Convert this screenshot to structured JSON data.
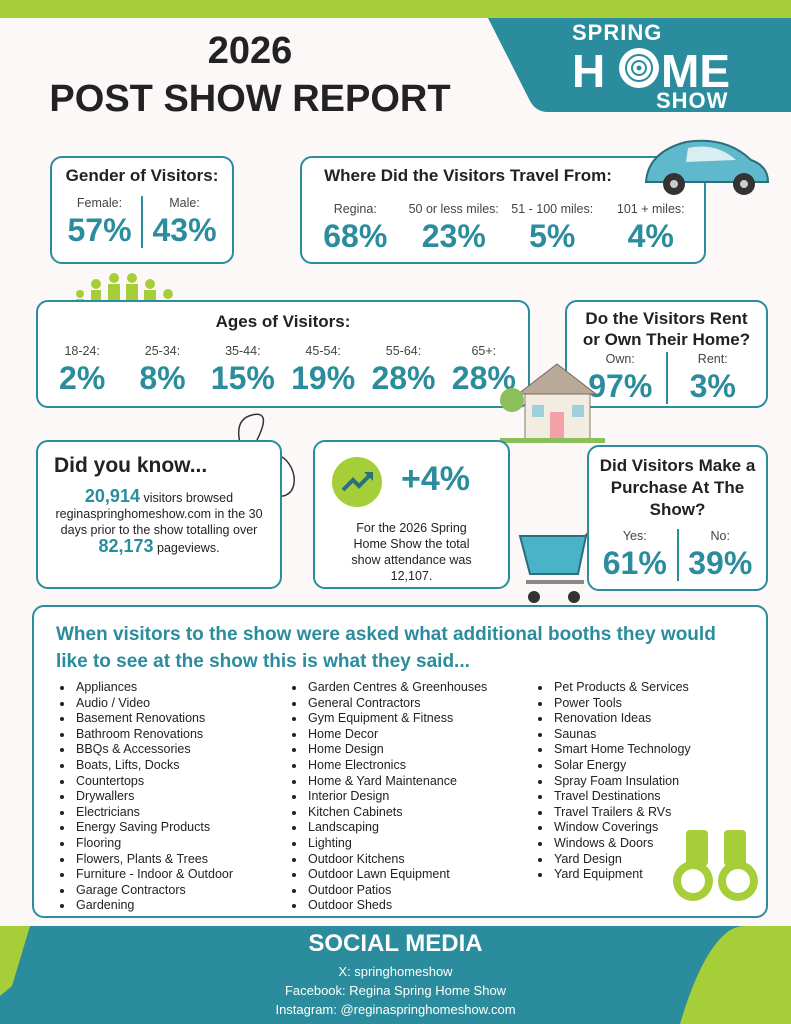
{
  "header": {
    "year": "2026",
    "title": "POST SHOW REPORT",
    "logo": {
      "top": "SPRING",
      "left": "H",
      "right": "ME",
      "bottom": "SHOW"
    }
  },
  "gender": {
    "title": "Gender of Visitors:",
    "items": [
      {
        "label": "Female:",
        "value": "57%"
      },
      {
        "label": "Male:",
        "value": "43%"
      }
    ]
  },
  "travel": {
    "title": "Where Did the Visitors Travel From:",
    "items": [
      {
        "label": "Regina:",
        "value": "68%"
      },
      {
        "label": "50 or less miles:",
        "value": "23%"
      },
      {
        "label": "51 - 100 miles:",
        "value": "5%"
      },
      {
        "label": "101 + miles:",
        "value": "4%"
      }
    ]
  },
  "ages": {
    "title": "Ages of Visitors:",
    "items": [
      {
        "label": "18-24:",
        "value": "2%"
      },
      {
        "label": "25-34:",
        "value": "8%"
      },
      {
        "label": "35-44:",
        "value": "15%"
      },
      {
        "label": "45-54:",
        "value": "19%"
      },
      {
        "label": "55-64:",
        "value": "28%"
      },
      {
        "label": "65+:",
        "value": "28%"
      }
    ]
  },
  "home": {
    "title": "Do the Visitors Rent or Own Their Home?",
    "items": [
      {
        "label": "Own:",
        "value": "97%"
      },
      {
        "label": "Rent:",
        "value": "3%"
      }
    ]
  },
  "did_you_know": {
    "title": "Did you know...",
    "visitors": "20,914",
    "text1": "visitors browsed reginaspringhomeshow.com in the 30 days prior to the show totalling over",
    "pageviews": "82,173",
    "text2": "pageviews."
  },
  "attendance": {
    "change": "+4%",
    "text": "For the 2026 Spring Home Show the total show attendance was 12,107."
  },
  "purchase": {
    "title": "Did Visitors Make a Purchase At The Show?",
    "items": [
      {
        "label": "Yes:",
        "value": "61%"
      },
      {
        "label": "No:",
        "value": "39%"
      }
    ]
  },
  "booths": {
    "title": "When visitors to the show were asked what additional booths they would like to see at the show this is what they said...",
    "columns": [
      [
        "Appliances",
        "Audio / Video",
        "Basement Renovations",
        "Bathroom Renovations",
        "BBQs & Accessories",
        "Boats, Lifts, Docks",
        "Countertops",
        "Drywallers",
        "Electricians",
        "Energy Saving Products",
        "Flooring",
        "Flowers, Plants &  Trees",
        "Furniture - Indoor & Outdoor",
        "Garage Contractors",
        "Gardening"
      ],
      [
        "Garden Centres & Greenhouses",
        "General Contractors",
        "Gym Equipment & Fitness",
        "Home Decor",
        "Home Design",
        "Home Electronics",
        "Home & Yard Maintenance",
        "Interior Design",
        "Kitchen Cabinets",
        "Landscaping",
        "Lighting",
        "Outdoor Kitchens",
        "Outdoor Lawn Equipment",
        "Outdoor Patios",
        "Outdoor Sheds"
      ],
      [
        "Pet Products & Services",
        "Power Tools",
        "Renovation Ideas",
        "Saunas",
        "Smart Home Technology",
        "Solar Energy",
        "Spray Foam Insulation",
        "Travel Destinations",
        "Travel Trailers & RVs",
        "Window Coverings",
        "Windows & Doors",
        "Yard Design",
        "Yard Equipment"
      ]
    ]
  },
  "footer": {
    "title": "SOCIAL MEDIA",
    "lines": [
      "X: springhomeshow",
      "Facebook: Regina Spring Home Show",
      "Instagram: @reginaspringhomeshow.com"
    ]
  }
}
